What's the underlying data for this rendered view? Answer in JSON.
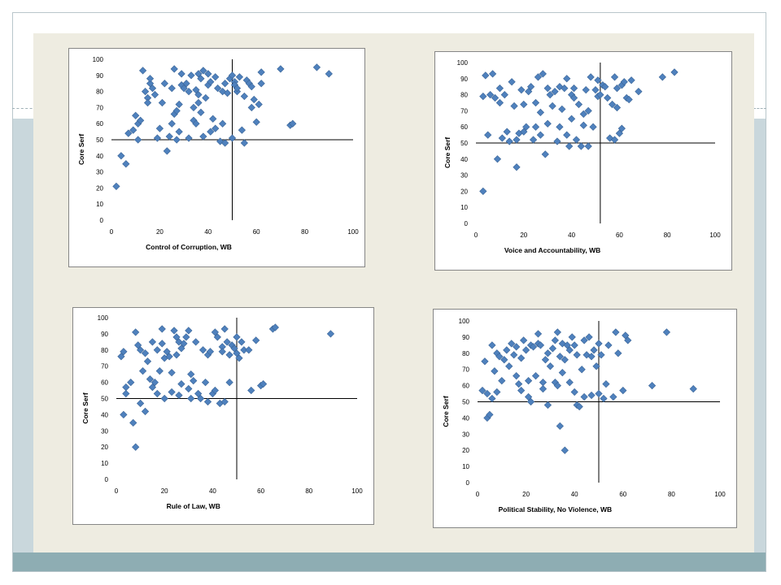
{
  "chart_data": [
    {
      "type": "scatter",
      "xlabel": "Control of Corruption, WB",
      "ylabel": "Core Serf",
      "xlim": [
        0,
        100
      ],
      "ylim": [
        0,
        100
      ],
      "xticks": [
        "0",
        "20",
        "40",
        "60",
        "80",
        "100"
      ],
      "yticks": [
        "0",
        "10",
        "20",
        "30",
        "40",
        "50",
        "60",
        "70",
        "80",
        "90",
        "100"
      ],
      "crosshair": {
        "x": 50,
        "y": 50
      },
      "marker_color": "#4f81bd",
      "points": [
        [
          2,
          21
        ],
        [
          4,
          40
        ],
        [
          6,
          35
        ],
        [
          7,
          54
        ],
        [
          9,
          56
        ],
        [
          10,
          65
        ],
        [
          11,
          60
        ],
        [
          12,
          62
        ],
        [
          11,
          50
        ],
        [
          13,
          93
        ],
        [
          14,
          80
        ],
        [
          15,
          76
        ],
        [
          15,
          73
        ],
        [
          16,
          85
        ],
        [
          16,
          88
        ],
        [
          17,
          82
        ],
        [
          18,
          78
        ],
        [
          19,
          51
        ],
        [
          20,
          57
        ],
        [
          21,
          73
        ],
        [
          22,
          85
        ],
        [
          24,
          52
        ],
        [
          23,
          43
        ],
        [
          25,
          82
        ],
        [
          25,
          60
        ],
        [
          26,
          94
        ],
        [
          26,
          66
        ],
        [
          27,
          50
        ],
        [
          27,
          68
        ],
        [
          28,
          55
        ],
        [
          28,
          72
        ],
        [
          29,
          91
        ],
        [
          29,
          84
        ],
        [
          30,
          82
        ],
        [
          31,
          85
        ],
        [
          32,
          51
        ],
        [
          32,
          80
        ],
        [
          33,
          90
        ],
        [
          34,
          70
        ],
        [
          34,
          62
        ],
        [
          35,
          81
        ],
        [
          35,
          60
        ],
        [
          36,
          91
        ],
        [
          36,
          73
        ],
        [
          36,
          78
        ],
        [
          37,
          88
        ],
        [
          37,
          67
        ],
        [
          38,
          93
        ],
        [
          38,
          52
        ],
        [
          39,
          76
        ],
        [
          40,
          84
        ],
        [
          40,
          91
        ],
        [
          41,
          86
        ],
        [
          41,
          55
        ],
        [
          42,
          63
        ],
        [
          43,
          57
        ],
        [
          43,
          89
        ],
        [
          44,
          82
        ],
        [
          45,
          49
        ],
        [
          46,
          80
        ],
        [
          46,
          60
        ],
        [
          47,
          48
        ],
        [
          47,
          85
        ],
        [
          48,
          79
        ],
        [
          49,
          88
        ],
        [
          50,
          51
        ],
        [
          50,
          90
        ],
        [
          51,
          86
        ],
        [
          51,
          84
        ],
        [
          52,
          80
        ],
        [
          52,
          82
        ],
        [
          53,
          89
        ],
        [
          54,
          56
        ],
        [
          55,
          48
        ],
        [
          55,
          77
        ],
        [
          56,
          87
        ],
        [
          57,
          85
        ],
        [
          58,
          70
        ],
        [
          58,
          83
        ],
        [
          59,
          75
        ],
        [
          60,
          61
        ],
        [
          61,
          72
        ],
        [
          62,
          92
        ],
        [
          62,
          85
        ],
        [
          70,
          94
        ],
        [
          74,
          59
        ],
        [
          75,
          60
        ],
        [
          85,
          95
        ],
        [
          90,
          91
        ]
      ]
    },
    {
      "type": "scatter",
      "xlabel": "Voice and Accountability, WB",
      "ylabel": "Core Serf",
      "xlim": [
        0,
        100
      ],
      "ylim": [
        0,
        100
      ],
      "xticks": [
        "0",
        "20",
        "40",
        "60",
        "80",
        "100"
      ],
      "yticks": [
        "0",
        "10",
        "20",
        "30",
        "40",
        "50",
        "60",
        "70",
        "80",
        "90",
        "100"
      ],
      "crosshair": {
        "x": 52,
        "y": 50
      },
      "marker_color": "#4f81bd",
      "points": [
        [
          3,
          20
        ],
        [
          3,
          79
        ],
        [
          4,
          92
        ],
        [
          5,
          55
        ],
        [
          6,
          80
        ],
        [
          7,
          93
        ],
        [
          8,
          78
        ],
        [
          9,
          40
        ],
        [
          10,
          75
        ],
        [
          10,
          84
        ],
        [
          11,
          53
        ],
        [
          12,
          80
        ],
        [
          13,
          57
        ],
        [
          14,
          51
        ],
        [
          15,
          88
        ],
        [
          16,
          73
        ],
        [
          17,
          35
        ],
        [
          17,
          52
        ],
        [
          18,
          56
        ],
        [
          19,
          83
        ],
        [
          20,
          57
        ],
        [
          20,
          74
        ],
        [
          21,
          60
        ],
        [
          22,
          82
        ],
        [
          23,
          85
        ],
        [
          24,
          52
        ],
        [
          25,
          60
        ],
        [
          25,
          75
        ],
        [
          26,
          91
        ],
        [
          27,
          69
        ],
        [
          27,
          55
        ],
        [
          28,
          93
        ],
        [
          29,
          43
        ],
        [
          30,
          84
        ],
        [
          30,
          62
        ],
        [
          31,
          80
        ],
        [
          32,
          73
        ],
        [
          33,
          82
        ],
        [
          34,
          51
        ],
        [
          35,
          85
        ],
        [
          35,
          60
        ],
        [
          36,
          71
        ],
        [
          37,
          84
        ],
        [
          38,
          90
        ],
        [
          38,
          55
        ],
        [
          39,
          48
        ],
        [
          40,
          80
        ],
        [
          40,
          65
        ],
        [
          41,
          84
        ],
        [
          41,
          78
        ],
        [
          42,
          52
        ],
        [
          43,
          74
        ],
        [
          44,
          48
        ],
        [
          45,
          68
        ],
        [
          45,
          61
        ],
        [
          46,
          83
        ],
        [
          47,
          48
        ],
        [
          47,
          70
        ],
        [
          48,
          91
        ],
        [
          49,
          60
        ],
        [
          50,
          83
        ],
        [
          51,
          89
        ],
        [
          51,
          79
        ],
        [
          52,
          80
        ],
        [
          53,
          86
        ],
        [
          54,
          85
        ],
        [
          55,
          78
        ],
        [
          56,
          53
        ],
        [
          57,
          74
        ],
        [
          58,
          52
        ],
        [
          58,
          91
        ],
        [
          59,
          72
        ],
        [
          59,
          84
        ],
        [
          60,
          56
        ],
        [
          61,
          59
        ],
        [
          61,
          86
        ],
        [
          62,
          88
        ],
        [
          63,
          78
        ],
        [
          64,
          77
        ],
        [
          65,
          89
        ],
        [
          68,
          82
        ],
        [
          78,
          91
        ],
        [
          83,
          94
        ]
      ]
    },
    {
      "type": "scatter",
      "xlabel": "Rule of Law, WB",
      "ylabel": "Core Serf",
      "xlim": [
        0,
        100
      ],
      "ylim": [
        0,
        100
      ],
      "xticks": [
        "0",
        "20",
        "40",
        "60",
        "80",
        "100"
      ],
      "yticks": [
        "0",
        "10",
        "20",
        "30",
        "40",
        "50",
        "60",
        "70",
        "80",
        "90",
        "100"
      ],
      "crosshair": {
        "x": 50,
        "y": 50
      },
      "marker_color": "#4f81bd",
      "points": [
        [
          2,
          76
        ],
        [
          3,
          79
        ],
        [
          3,
          40
        ],
        [
          4,
          53
        ],
        [
          4,
          57
        ],
        [
          6,
          60
        ],
        [
          7,
          35
        ],
        [
          8,
          91
        ],
        [
          8,
          20
        ],
        [
          9,
          83
        ],
        [
          10,
          80
        ],
        [
          10,
          47
        ],
        [
          11,
          67
        ],
        [
          12,
          78
        ],
        [
          12,
          42
        ],
        [
          13,
          73
        ],
        [
          14,
          62
        ],
        [
          15,
          57
        ],
        [
          15,
          85
        ],
        [
          16,
          60
        ],
        [
          17,
          80
        ],
        [
          17,
          53
        ],
        [
          18,
          67
        ],
        [
          19,
          84
        ],
        [
          19,
          93
        ],
        [
          20,
          75
        ],
        [
          20,
          50
        ],
        [
          21,
          79
        ],
        [
          22,
          76
        ],
        [
          23,
          66
        ],
        [
          23,
          54
        ],
        [
          24,
          92
        ],
        [
          25,
          77
        ],
        [
          25,
          88
        ],
        [
          26,
          52
        ],
        [
          26,
          85
        ],
        [
          27,
          81
        ],
        [
          27,
          59
        ],
        [
          28,
          84
        ],
        [
          29,
          88
        ],
        [
          30,
          92
        ],
        [
          30,
          56
        ],
        [
          31,
          50
        ],
        [
          31,
          65
        ],
        [
          32,
          61
        ],
        [
          33,
          85
        ],
        [
          34,
          53
        ],
        [
          35,
          50
        ],
        [
          36,
          80
        ],
        [
          37,
          60
        ],
        [
          38,
          77
        ],
        [
          38,
          48
        ],
        [
          39,
          79
        ],
        [
          40,
          53
        ],
        [
          41,
          91
        ],
        [
          41,
          55
        ],
        [
          42,
          88
        ],
        [
          43,
          47
        ],
        [
          44,
          82
        ],
        [
          44,
          79
        ],
        [
          45,
          48
        ],
        [
          45,
          93
        ],
        [
          46,
          85
        ],
        [
          47,
          77
        ],
        [
          47,
          60
        ],
        [
          48,
          83
        ],
        [
          49,
          81
        ],
        [
          50,
          88
        ],
        [
          50,
          78
        ],
        [
          51,
          75
        ],
        [
          52,
          85
        ],
        [
          53,
          80
        ],
        [
          55,
          80
        ],
        [
          56,
          55
        ],
        [
          58,
          86
        ],
        [
          60,
          58
        ],
        [
          61,
          59
        ],
        [
          65,
          93
        ],
        [
          66,
          94
        ],
        [
          89,
          90
        ]
      ]
    },
    {
      "type": "scatter",
      "xlabel": "Political Stability, No Violence, WB",
      "ylabel": "Core Serf",
      "xlim": [
        0,
        100
      ],
      "ylim": [
        0,
        100
      ],
      "xticks": [
        "0",
        "20",
        "40",
        "60",
        "80",
        "100"
      ],
      "yticks": [
        "0",
        "10",
        "20",
        "30",
        "40",
        "50",
        "60",
        "70",
        "80",
        "90",
        "100"
      ],
      "crosshair": {
        "x": 50,
        "y": 50
      },
      "marker_color": "#4f81bd",
      "points": [
        [
          2,
          57
        ],
        [
          3,
          75
        ],
        [
          4,
          55
        ],
        [
          4,
          40
        ],
        [
          5,
          42
        ],
        [
          6,
          52
        ],
        [
          6,
          85
        ],
        [
          7,
          69
        ],
        [
          8,
          80
        ],
        [
          8,
          56
        ],
        [
          9,
          78
        ],
        [
          10,
          63
        ],
        [
          11,
          76
        ],
        [
          12,
          82
        ],
        [
          13,
          72
        ],
        [
          14,
          86
        ],
        [
          15,
          79
        ],
        [
          16,
          66
        ],
        [
          16,
          84
        ],
        [
          17,
          61
        ],
        [
          18,
          57
        ],
        [
          18,
          77
        ],
        [
          19,
          88
        ],
        [
          20,
          82
        ],
        [
          21,
          63
        ],
        [
          21,
          53
        ],
        [
          22,
          85
        ],
        [
          22,
          50
        ],
        [
          23,
          84
        ],
        [
          24,
          66
        ],
        [
          25,
          92
        ],
        [
          25,
          86
        ],
        [
          26,
          85
        ],
        [
          27,
          62
        ],
        [
          27,
          58
        ],
        [
          28,
          76
        ],
        [
          29,
          48
        ],
        [
          29,
          80
        ],
        [
          30,
          72
        ],
        [
          31,
          83
        ],
        [
          32,
          62
        ],
        [
          32,
          88
        ],
        [
          33,
          93
        ],
        [
          33,
          60
        ],
        [
          34,
          35
        ],
        [
          34,
          78
        ],
        [
          35,
          86
        ],
        [
          35,
          68
        ],
        [
          36,
          20
        ],
        [
          36,
          76
        ],
        [
          37,
          85
        ],
        [
          38,
          62
        ],
        [
          38,
          82
        ],
        [
          39,
          90
        ],
        [
          40,
          56
        ],
        [
          40,
          85
        ],
        [
          41,
          48
        ],
        [
          41,
          79
        ],
        [
          42,
          47
        ],
        [
          43,
          70
        ],
        [
          44,
          53
        ],
        [
          44,
          88
        ],
        [
          45,
          79
        ],
        [
          46,
          90
        ],
        [
          47,
          54
        ],
        [
          47,
          78
        ],
        [
          48,
          82
        ],
        [
          49,
          72
        ],
        [
          50,
          55
        ],
        [
          50,
          86
        ],
        [
          51,
          79
        ],
        [
          52,
          52
        ],
        [
          53,
          61
        ],
        [
          54,
          85
        ],
        [
          56,
          53
        ],
        [
          57,
          93
        ],
        [
          58,
          80
        ],
        [
          60,
          57
        ],
        [
          61,
          91
        ],
        [
          62,
          88
        ],
        [
          72,
          60
        ],
        [
          78,
          93
        ],
        [
          89,
          58
        ]
      ]
    }
  ]
}
